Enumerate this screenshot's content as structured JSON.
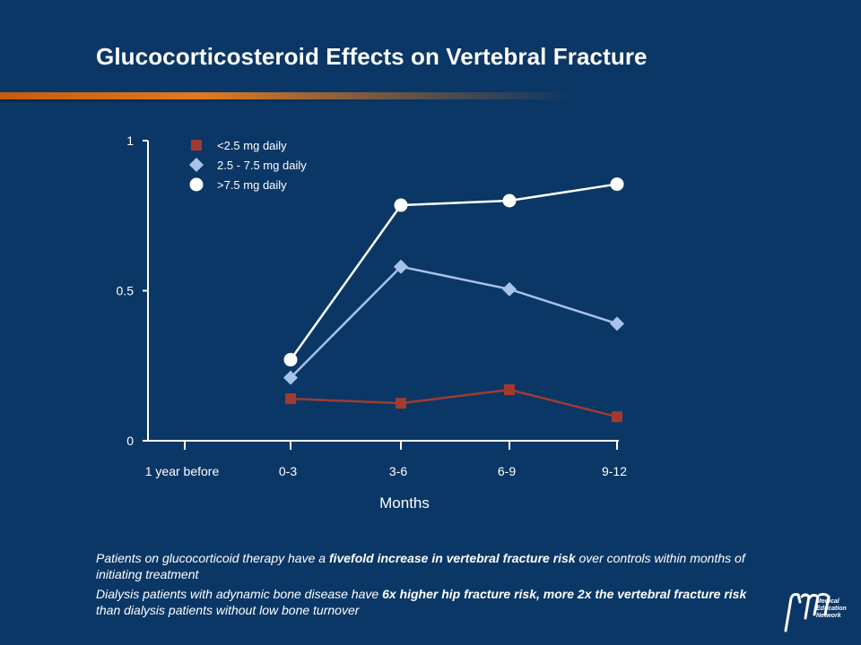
{
  "slide": {
    "title": "Glucocorticosteroid Effects on Vertebral Fracture",
    "notes": [
      {
        "pre": "Patients on glucocorticoid therapy have a ",
        "bold": "fivefold increase in vertebral fracture risk",
        "post": " over controls within months of initiating treatment"
      },
      {
        "pre": "Dialysis patients with adynamic bone disease have ",
        "bold": "6x higher hip fracture risk, more 2x the vertebral fracture risk",
        "post": " than dialysis patients without low bone turnover"
      }
    ],
    "logo": {
      "line1": "Medical",
      "line2": "Education",
      "line3": "Network"
    }
  },
  "colors": {
    "background": "#0b3766",
    "accent": "#e07a20",
    "series_low": "#a23b2f",
    "series_mid": "#a9c2ea",
    "series_high": "#ffffff"
  },
  "chart_data": {
    "type": "line",
    "categories": [
      "1 year before",
      "0-3",
      "3-6",
      "6-9",
      "9-12"
    ],
    "xlabel": "Months",
    "ylabel": "",
    "ylim": [
      0,
      1
    ],
    "yticks": [
      "0",
      "0.5",
      "1"
    ],
    "grid": false,
    "legend_position": "top-left",
    "series": [
      {
        "name": "<2.5 mg daily",
        "marker": "square",
        "color": "#a23b2f",
        "values": [
          null,
          0.14,
          0.125,
          0.17,
          0.08
        ]
      },
      {
        "name": "2.5 - 7.5 mg daily",
        "marker": "diamond",
        "color": "#a9c2ea",
        "values": [
          null,
          0.21,
          0.58,
          0.505,
          0.39
        ]
      },
      {
        "name": ">7.5 mg daily",
        "marker": "circle",
        "color": "#ffffff",
        "values": [
          null,
          0.27,
          0.785,
          0.8,
          0.855
        ]
      }
    ]
  }
}
